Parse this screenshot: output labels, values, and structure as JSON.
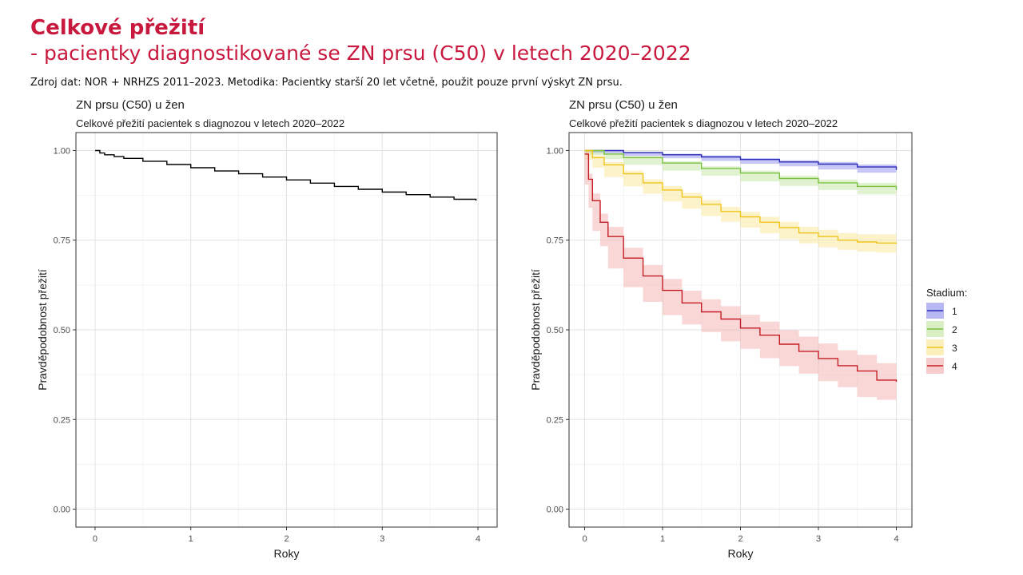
{
  "slide": {
    "title": "Celkové přežití",
    "subtitle": "- pacientky diagnostikované se ZN prsu (C50) v letech 2020–2022",
    "source": "Zdroj dat: NOR + NRHZS 2011–2023. Metodika: Pacientky starší 20 let včetně, použit pouze první výskyt ZN prsu."
  },
  "chart_data": [
    {
      "type": "line",
      "title": "ZN prsu (C50) u žen",
      "subtitle": "Celkové přežití pacientek s diagnozou v letech 2020–2022",
      "xlabel": "Roky",
      "ylabel": "Pravděpodobnost přežití",
      "xlim": [
        -0.2,
        4.2
      ],
      "ylim": [
        -0.05,
        1.05
      ],
      "xticks": [
        0,
        1,
        2,
        3,
        4
      ],
      "yticks": [
        0.0,
        0.25,
        0.5,
        0.75,
        1.0
      ],
      "ytick_labels": [
        "0.00",
        "0.25",
        "0.50",
        "0.75",
        "1.00"
      ],
      "grid": true,
      "series": [
        {
          "color": "#000000",
          "x": [
            0,
            0.05,
            0.1,
            0.2,
            0.3,
            0.5,
            0.75,
            1.0,
            1.25,
            1.5,
            1.75,
            2.0,
            2.25,
            2.5,
            2.75,
            3.0,
            3.25,
            3.5,
            3.75,
            3.98
          ],
          "y": [
            1.0,
            0.993,
            0.988,
            0.983,
            0.978,
            0.97,
            0.961,
            0.952,
            0.943,
            0.935,
            0.926,
            0.918,
            0.909,
            0.9,
            0.892,
            0.884,
            0.877,
            0.87,
            0.864,
            0.86
          ]
        }
      ]
    },
    {
      "type": "line",
      "title": "ZN prsu (C50) u žen",
      "subtitle": "Celkové přežití pacientek s diagnozou v letech 2020–2022",
      "xlabel": "Roky",
      "ylabel": "Pravděpodobnost přežití",
      "xlim": [
        -0.2,
        4.2
      ],
      "ylim": [
        -0.05,
        1.05
      ],
      "xticks": [
        0,
        1,
        2,
        3,
        4
      ],
      "yticks": [
        0.0,
        0.25,
        0.5,
        0.75,
        1.0
      ],
      "ytick_labels": [
        "0.00",
        "0.25",
        "0.50",
        "0.75",
        "1.00"
      ],
      "grid": true,
      "legend": {
        "title": "Stadium:",
        "position": "right"
      },
      "series": [
        {
          "name": "1",
          "color": "#2b2bb5",
          "fill": "#9999ee",
          "x": [
            0,
            0.5,
            1.0,
            1.5,
            2.0,
            2.5,
            3.0,
            3.5,
            4.0
          ],
          "y": [
            1.0,
            0.994,
            0.988,
            0.982,
            0.975,
            0.968,
            0.962,
            0.954,
            0.946
          ],
          "lower": [
            1.0,
            0.992,
            0.985,
            0.978,
            0.971,
            0.963,
            0.956,
            0.947,
            0.938
          ],
          "upper": [
            1.0,
            0.996,
            0.991,
            0.986,
            0.979,
            0.973,
            0.968,
            0.961,
            0.954
          ]
        },
        {
          "name": "2",
          "color": "#7ac142",
          "fill": "#c9e7a9",
          "x": [
            0,
            0.25,
            0.5,
            1.0,
            1.5,
            2.0,
            2.5,
            3.0,
            3.5,
            4.0
          ],
          "y": [
            1.0,
            0.99,
            0.98,
            0.965,
            0.95,
            0.937,
            0.922,
            0.91,
            0.9,
            0.89
          ],
          "lower": [
            1.0,
            0.987,
            0.976,
            0.96,
            0.944,
            0.93,
            0.914,
            0.901,
            0.89,
            0.878
          ],
          "upper": [
            1.0,
            0.993,
            0.984,
            0.97,
            0.956,
            0.944,
            0.93,
            0.919,
            0.91,
            0.902
          ]
        },
        {
          "name": "3",
          "color": "#f0c419",
          "fill": "#faeaa0",
          "x": [
            0,
            0.1,
            0.25,
            0.5,
            0.75,
            1.0,
            1.25,
            1.5,
            1.75,
            2.0,
            2.25,
            2.5,
            2.75,
            3.0,
            3.25,
            3.5,
            3.75,
            4.0
          ],
          "y": [
            1.0,
            0.98,
            0.96,
            0.935,
            0.91,
            0.89,
            0.87,
            0.85,
            0.83,
            0.815,
            0.8,
            0.785,
            0.77,
            0.76,
            0.75,
            0.745,
            0.742,
            0.74
          ],
          "lower": [
            1.0,
            0.974,
            0.952,
            0.926,
            0.9,
            0.879,
            0.858,
            0.838,
            0.817,
            0.801,
            0.785,
            0.769,
            0.753,
            0.741,
            0.73,
            0.723,
            0.718,
            0.715
          ],
          "upper": [
            1.0,
            0.986,
            0.968,
            0.944,
            0.92,
            0.901,
            0.882,
            0.862,
            0.843,
            0.829,
            0.815,
            0.801,
            0.787,
            0.779,
            0.77,
            0.767,
            0.766,
            0.765
          ]
        },
        {
          "name": "4",
          "color": "#c41e24",
          "fill": "#f4b6b6",
          "x": [
            0,
            0.05,
            0.1,
            0.2,
            0.3,
            0.5,
            0.75,
            1.0,
            1.25,
            1.5,
            1.75,
            2.0,
            2.25,
            2.5,
            2.75,
            3.0,
            3.25,
            3.5,
            3.75,
            4.0
          ],
          "y": [
            0.99,
            0.92,
            0.86,
            0.8,
            0.76,
            0.7,
            0.65,
            0.61,
            0.575,
            0.55,
            0.53,
            0.505,
            0.485,
            0.46,
            0.44,
            0.42,
            0.4,
            0.385,
            0.36,
            0.355
          ],
          "lower": [
            0.985,
            0.905,
            0.84,
            0.776,
            0.733,
            0.671,
            0.619,
            0.578,
            0.541,
            0.515,
            0.494,
            0.468,
            0.447,
            0.421,
            0.399,
            0.378,
            0.357,
            0.34,
            0.313,
            0.305
          ],
          "upper": [
            0.995,
            0.935,
            0.88,
            0.824,
            0.787,
            0.729,
            0.681,
            0.642,
            0.609,
            0.585,
            0.566,
            0.542,
            0.523,
            0.499,
            0.481,
            0.462,
            0.443,
            0.43,
            0.407,
            0.405
          ]
        }
      ]
    }
  ]
}
